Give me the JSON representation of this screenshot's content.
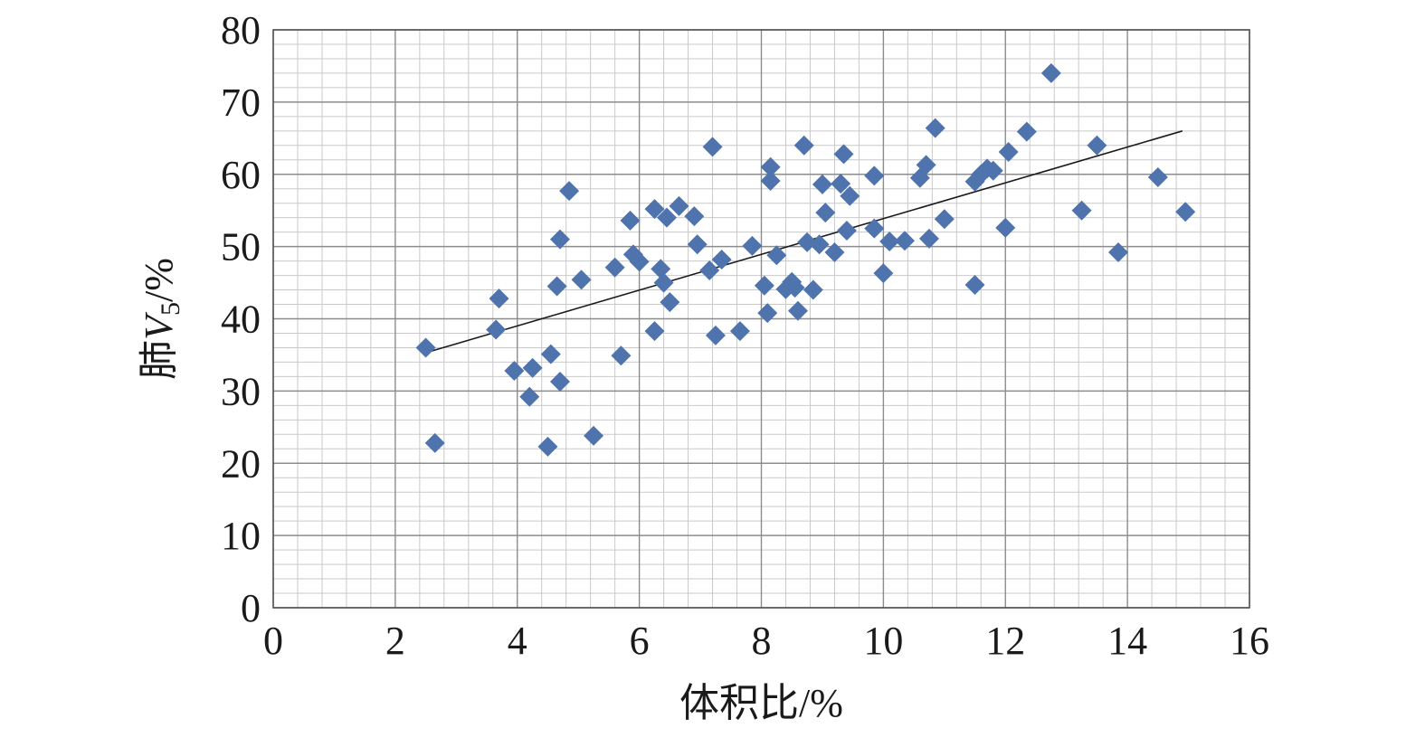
{
  "chart_data": {
    "type": "scatter",
    "title": "",
    "xlabel": "体积比/%",
    "ylabel_prefix": "肺",
    "ylabel_var": "V",
    "ylabel_sub": "5",
    "ylabel_suffix": "/%",
    "xlim": [
      0,
      16
    ],
    "ylim": [
      0,
      80
    ],
    "x_ticks": [
      "0",
      "2",
      "4",
      "6",
      "8",
      "10",
      "12",
      "14",
      "16"
    ],
    "y_ticks": [
      "0",
      "10",
      "20",
      "30",
      "40",
      "50",
      "60",
      "70",
      "80"
    ],
    "grid": true,
    "legend": "none",
    "marker": "diamond",
    "marker_color": "#4f73ad",
    "trendline": {
      "type": "linear",
      "x": [
        2.5,
        14.9
      ],
      "y": [
        35.3,
        66.0
      ]
    },
    "points": [
      [
        2.5,
        36.0
      ],
      [
        2.65,
        22.8
      ],
      [
        3.65,
        38.5
      ],
      [
        3.7,
        42.8
      ],
      [
        3.95,
        32.8
      ],
      [
        4.2,
        29.2
      ],
      [
        4.25,
        33.2
      ],
      [
        4.5,
        22.3
      ],
      [
        4.55,
        35.1
      ],
      [
        4.65,
        44.5
      ],
      [
        4.7,
        51.0
      ],
      [
        4.7,
        31.3
      ],
      [
        4.85,
        57.7
      ],
      [
        5.05,
        45.4
      ],
      [
        5.25,
        23.8
      ],
      [
        5.6,
        47.1
      ],
      [
        5.7,
        34.9
      ],
      [
        5.85,
        53.6
      ],
      [
        5.9,
        48.9
      ],
      [
        6.0,
        47.9
      ],
      [
        6.25,
        55.2
      ],
      [
        6.25,
        38.3
      ],
      [
        6.35,
        46.9
      ],
      [
        6.4,
        45.0
      ],
      [
        6.45,
        54.0
      ],
      [
        6.5,
        42.3
      ],
      [
        6.65,
        55.6
      ],
      [
        6.9,
        54.2
      ],
      [
        6.95,
        50.3
      ],
      [
        7.15,
        46.7
      ],
      [
        7.2,
        63.8
      ],
      [
        7.25,
        37.7
      ],
      [
        7.35,
        48.2
      ],
      [
        7.65,
        38.3
      ],
      [
        7.85,
        50.1
      ],
      [
        8.05,
        44.6
      ],
      [
        8.1,
        40.8
      ],
      [
        8.15,
        61.0
      ],
      [
        8.15,
        59.1
      ],
      [
        8.25,
        48.8
      ],
      [
        8.4,
        44.1
      ],
      [
        8.5,
        45.1
      ],
      [
        8.55,
        44.3
      ],
      [
        8.6,
        41.1
      ],
      [
        8.7,
        64.0
      ],
      [
        8.75,
        50.6
      ],
      [
        8.85,
        44.0
      ],
      [
        8.95,
        50.3
      ],
      [
        9.0,
        58.6
      ],
      [
        9.05,
        54.7
      ],
      [
        9.2,
        49.2
      ],
      [
        9.3,
        58.7
      ],
      [
        9.35,
        62.8
      ],
      [
        9.4,
        52.2
      ],
      [
        9.45,
        57.0
      ],
      [
        9.85,
        52.5
      ],
      [
        9.85,
        59.8
      ],
      [
        10.0,
        46.3
      ],
      [
        10.1,
        50.7
      ],
      [
        10.35,
        50.8
      ],
      [
        10.6,
        59.5
      ],
      [
        10.7,
        61.3
      ],
      [
        10.75,
        51.1
      ],
      [
        10.85,
        66.4
      ],
      [
        11.0,
        53.8
      ],
      [
        11.5,
        44.7
      ],
      [
        11.5,
        59.0
      ],
      [
        11.6,
        60.0
      ],
      [
        11.7,
        60.8
      ],
      [
        11.8,
        60.5
      ],
      [
        12.0,
        52.6
      ],
      [
        12.05,
        63.1
      ],
      [
        12.35,
        65.9
      ],
      [
        12.75,
        74.0
      ],
      [
        13.25,
        55.0
      ],
      [
        13.5,
        64.0
      ],
      [
        13.85,
        49.2
      ],
      [
        14.5,
        59.6
      ],
      [
        14.95,
        54.8
      ]
    ]
  }
}
